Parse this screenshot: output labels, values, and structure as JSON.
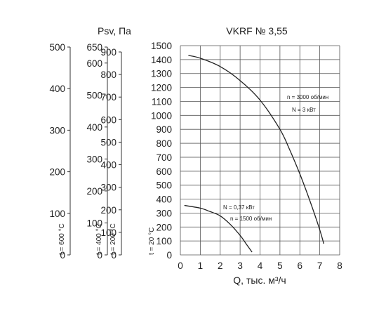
{
  "chart_data": {
    "type": "line",
    "title": "VKRF № 3,55",
    "ylabel": "Psv, Па",
    "xlabel": "Q, тыс. м³/ч",
    "xlim": [
      0,
      8
    ],
    "ylim": [
      0,
      1500
    ],
    "grid": true,
    "x_ticks": [
      "0",
      "1",
      "2",
      "3",
      "4",
      "5",
      "6",
      "7",
      "8"
    ],
    "y_ticks": [
      "0",
      "100",
      "200",
      "300",
      "400",
      "500",
      "600",
      "700",
      "800",
      "900",
      "1000",
      "1100",
      "1200",
      "1300",
      "1400",
      "1500"
    ],
    "series": [
      {
        "annotations": [
          "n = 3000 об/мин",
          "N = 3 кВт"
        ],
        "x": [
          0.4,
          1,
          2,
          3,
          4,
          5,
          5.5,
          6,
          6.5,
          7,
          7.2
        ],
        "y": [
          1430,
          1410,
          1350,
          1250,
          1110,
          900,
          750,
          580,
          390,
          180,
          80
        ]
      },
      {
        "annotations": [
          "N = 0,37 кВт",
          "n = 1500 об/мин"
        ],
        "x": [
          0.2,
          1,
          1.5,
          2,
          2.5,
          3,
          3.3,
          3.6
        ],
        "y": [
          355,
          335,
          310,
          280,
          220,
          140,
          80,
          20
        ]
      }
    ],
    "temperature_scales": [
      {
        "label": "t = 20 °C",
        "ticks": [
          "0",
          "100",
          "200",
          "300",
          "400",
          "500",
          "600",
          "700",
          "800",
          "900",
          "1000",
          "1100",
          "1200",
          "1300",
          "1400",
          "1500"
        ]
      },
      {
        "label": "t = 200 °C",
        "max": 900,
        "ticks": [
          "0",
          "100",
          "200",
          "300",
          "400",
          "500",
          "600",
          "700",
          "800",
          "900"
        ]
      },
      {
        "label": "t = 400 °C",
        "max": 650,
        "ticks": [
          "0",
          "100",
          "200",
          "300",
          "400",
          "500",
          "600",
          "650"
        ]
      },
      {
        "label": "t = 600 °C",
        "max": 500,
        "ticks": [
          "0",
          "100",
          "200",
          "300",
          "400",
          "500"
        ]
      }
    ]
  }
}
